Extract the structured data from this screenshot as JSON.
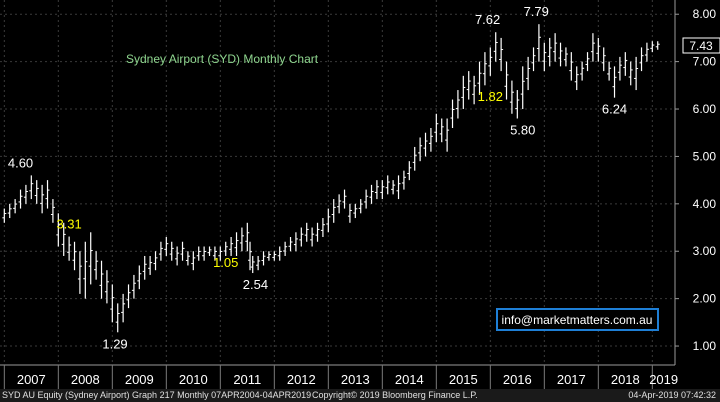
{
  "chart_data": {
    "type": "ohlc",
    "title": "Sydney Airport (SYD) Monthly Chart",
    "price_label": "7.43",
    "watermark": "info@marketmatters.com.au",
    "y_ticks": [
      "1.00",
      "2.00",
      "3.00",
      "4.00",
      "5.00",
      "6.00",
      "7.00",
      "8.00"
    ],
    "y_range": [
      0.6,
      8.3
    ],
    "x_ticks": [
      "2007",
      "2008",
      "2009",
      "2010",
      "2011",
      "2012",
      "2013",
      "2014",
      "2015",
      "2016",
      "2017",
      "2018",
      "2019"
    ],
    "x_range": [
      2006.92,
      2019.42
    ],
    "annotations": [
      {
        "text": "4.60",
        "x": 2007.3,
        "y": 4.6,
        "color": "#ffffff"
      },
      {
        "text": "3.31",
        "x": 2008.2,
        "y": 3.31,
        "color": "#ffff00"
      },
      {
        "text": "1.29",
        "x": 2009.05,
        "y": 1.29,
        "color": "#ffffff"
      },
      {
        "text": "1.05",
        "x": 2011.1,
        "y": 3.0,
        "color": "#ffff00"
      },
      {
        "text": "2.54",
        "x": 2011.65,
        "y": 2.54,
        "color": "#ffffff"
      },
      {
        "text": "7.62",
        "x": 2015.95,
        "y": 7.62,
        "color": "#ffffff"
      },
      {
        "text": "7.79",
        "x": 2016.85,
        "y": 7.79,
        "color": "#ffffff"
      },
      {
        "text": "1.82",
        "x": 2016.0,
        "y": 6.0,
        "color": "#ffff00"
      },
      {
        "text": "5.80",
        "x": 2016.6,
        "y": 5.8,
        "color": "#ffffff"
      },
      {
        "text": "6.24",
        "x": 2018.3,
        "y": 6.24,
        "color": "#ffffff"
      }
    ],
    "series": [
      {
        "name": "SYD AU Equity",
        "points": [
          [
            2007.0,
            3.6,
            3.9
          ],
          [
            2007.1,
            3.7,
            4.0
          ],
          [
            2007.2,
            3.8,
            4.1
          ],
          [
            2007.3,
            3.9,
            4.3
          ],
          [
            2007.4,
            4.0,
            4.4
          ],
          [
            2007.5,
            4.1,
            4.6
          ],
          [
            2007.6,
            4.0,
            4.5
          ],
          [
            2007.7,
            3.8,
            4.4
          ],
          [
            2007.8,
            3.9,
            4.5
          ],
          [
            2007.9,
            3.6,
            4.1
          ],
          [
            2008.0,
            3.1,
            3.8
          ],
          [
            2008.1,
            2.9,
            3.6
          ],
          [
            2008.2,
            2.8,
            3.31
          ],
          [
            2008.3,
            2.6,
            3.2
          ],
          [
            2008.4,
            2.1,
            3.0
          ],
          [
            2008.5,
            2.0,
            3.2
          ],
          [
            2008.6,
            2.3,
            3.4
          ],
          [
            2008.7,
            2.4,
            3.0
          ],
          [
            2008.8,
            2.0,
            2.8
          ],
          [
            2008.9,
            1.9,
            2.6
          ],
          [
            2009.0,
            1.5,
            2.3
          ],
          [
            2009.1,
            1.29,
            1.9
          ],
          [
            2009.2,
            1.5,
            2.1
          ],
          [
            2009.3,
            1.8,
            2.3
          ],
          [
            2009.4,
            2.0,
            2.5
          ],
          [
            2009.5,
            2.2,
            2.7
          ],
          [
            2009.6,
            2.4,
            2.9
          ],
          [
            2009.7,
            2.5,
            2.9
          ],
          [
            2009.8,
            2.6,
            3.0
          ],
          [
            2009.9,
            2.8,
            3.2
          ],
          [
            2010.0,
            2.9,
            3.3
          ],
          [
            2010.1,
            2.8,
            3.2
          ],
          [
            2010.2,
            2.7,
            3.1
          ],
          [
            2010.3,
            2.8,
            3.2
          ],
          [
            2010.4,
            2.7,
            3.0
          ],
          [
            2010.5,
            2.6,
            3.0
          ],
          [
            2010.6,
            2.8,
            3.1
          ],
          [
            2010.7,
            2.8,
            3.1
          ],
          [
            2010.8,
            2.9,
            3.1
          ],
          [
            2010.9,
            2.8,
            3.1
          ],
          [
            2011.0,
            2.8,
            3.1
          ],
          [
            2011.1,
            2.9,
            3.2
          ],
          [
            2011.2,
            2.9,
            3.3
          ],
          [
            2011.3,
            2.9,
            3.4
          ],
          [
            2011.4,
            3.0,
            3.5
          ],
          [
            2011.5,
            3.0,
            3.6
          ],
          [
            2011.55,
            2.6,
            3.2
          ],
          [
            2011.6,
            2.54,
            2.9
          ],
          [
            2011.7,
            2.6,
            2.9
          ],
          [
            2011.8,
            2.7,
            3.0
          ],
          [
            2011.9,
            2.8,
            3.0
          ],
          [
            2012.0,
            2.8,
            3.0
          ],
          [
            2012.1,
            2.8,
            3.1
          ],
          [
            2012.2,
            2.9,
            3.2
          ],
          [
            2012.3,
            3.0,
            3.3
          ],
          [
            2012.4,
            3.0,
            3.4
          ],
          [
            2012.5,
            3.1,
            3.5
          ],
          [
            2012.6,
            3.2,
            3.6
          ],
          [
            2012.7,
            3.1,
            3.5
          ],
          [
            2012.8,
            3.2,
            3.6
          ],
          [
            2012.9,
            3.3,
            3.7
          ],
          [
            2013.0,
            3.4,
            3.9
          ],
          [
            2013.1,
            3.6,
            4.1
          ],
          [
            2013.2,
            3.8,
            4.2
          ],
          [
            2013.3,
            3.9,
            4.3
          ],
          [
            2013.4,
            3.6,
            4.0
          ],
          [
            2013.5,
            3.7,
            4.0
          ],
          [
            2013.6,
            3.8,
            4.1
          ],
          [
            2013.7,
            3.9,
            4.3
          ],
          [
            2013.8,
            4.0,
            4.4
          ],
          [
            2013.9,
            4.1,
            4.5
          ],
          [
            2014.0,
            4.1,
            4.5
          ],
          [
            2014.1,
            4.2,
            4.6
          ],
          [
            2014.2,
            4.2,
            4.5
          ],
          [
            2014.3,
            4.1,
            4.6
          ],
          [
            2014.4,
            4.3,
            4.7
          ],
          [
            2014.5,
            4.5,
            4.9
          ],
          [
            2014.6,
            4.7,
            5.2
          ],
          [
            2014.7,
            4.9,
            5.4
          ],
          [
            2014.8,
            5.0,
            5.5
          ],
          [
            2014.9,
            5.1,
            5.6
          ],
          [
            2015.0,
            5.3,
            5.9
          ],
          [
            2015.1,
            5.3,
            5.8
          ],
          [
            2015.2,
            5.1,
            5.8
          ],
          [
            2015.3,
            5.6,
            6.2
          ],
          [
            2015.4,
            5.8,
            6.4
          ],
          [
            2015.5,
            6.0,
            6.7
          ],
          [
            2015.6,
            6.2,
            6.8
          ],
          [
            2015.7,
            6.1,
            6.7
          ],
          [
            2015.8,
            6.3,
            7.0
          ],
          [
            2015.9,
            6.5,
            7.2
          ],
          [
            2016.0,
            6.7,
            7.3
          ],
          [
            2016.1,
            7.0,
            7.62
          ],
          [
            2016.2,
            6.8,
            7.5
          ],
          [
            2016.3,
            6.2,
            7.0
          ],
          [
            2016.4,
            5.9,
            6.6
          ],
          [
            2016.5,
            5.8,
            6.4
          ],
          [
            2016.6,
            6.0,
            6.9
          ],
          [
            2016.7,
            6.4,
            7.1
          ],
          [
            2016.8,
            6.8,
            7.3
          ],
          [
            2016.9,
            7.0,
            7.79
          ],
          [
            2017.0,
            6.8,
            7.4
          ],
          [
            2017.1,
            6.9,
            7.5
          ],
          [
            2017.2,
            7.0,
            7.6
          ],
          [
            2017.3,
            6.9,
            7.4
          ],
          [
            2017.4,
            6.9,
            7.3
          ],
          [
            2017.5,
            6.6,
            7.2
          ],
          [
            2017.6,
            6.4,
            6.9
          ],
          [
            2017.7,
            6.6,
            7.0
          ],
          [
            2017.8,
            6.8,
            7.2
          ],
          [
            2017.9,
            7.0,
            7.6
          ],
          [
            2018.0,
            7.0,
            7.5
          ],
          [
            2018.1,
            6.8,
            7.3
          ],
          [
            2018.2,
            6.6,
            7.0
          ],
          [
            2018.3,
            6.24,
            6.9
          ],
          [
            2018.4,
            6.6,
            7.1
          ],
          [
            2018.5,
            6.7,
            7.2
          ],
          [
            2018.6,
            6.5,
            7.0
          ],
          [
            2018.7,
            6.4,
            7.1
          ],
          [
            2018.8,
            6.8,
            7.3
          ],
          [
            2018.9,
            7.0,
            7.4
          ],
          [
            2019.0,
            7.2,
            7.43
          ],
          [
            2019.1,
            7.25,
            7.43
          ]
        ]
      }
    ]
  },
  "footer": {
    "left": "SYD AU Equity (Sydney Airport) Graph 217  Monthly 07APR2004-04APR2019",
    "mid": "Copyright© 2019 Bloomberg Finance L.P.",
    "right": "04-Apr-2019 07:42:32"
  }
}
